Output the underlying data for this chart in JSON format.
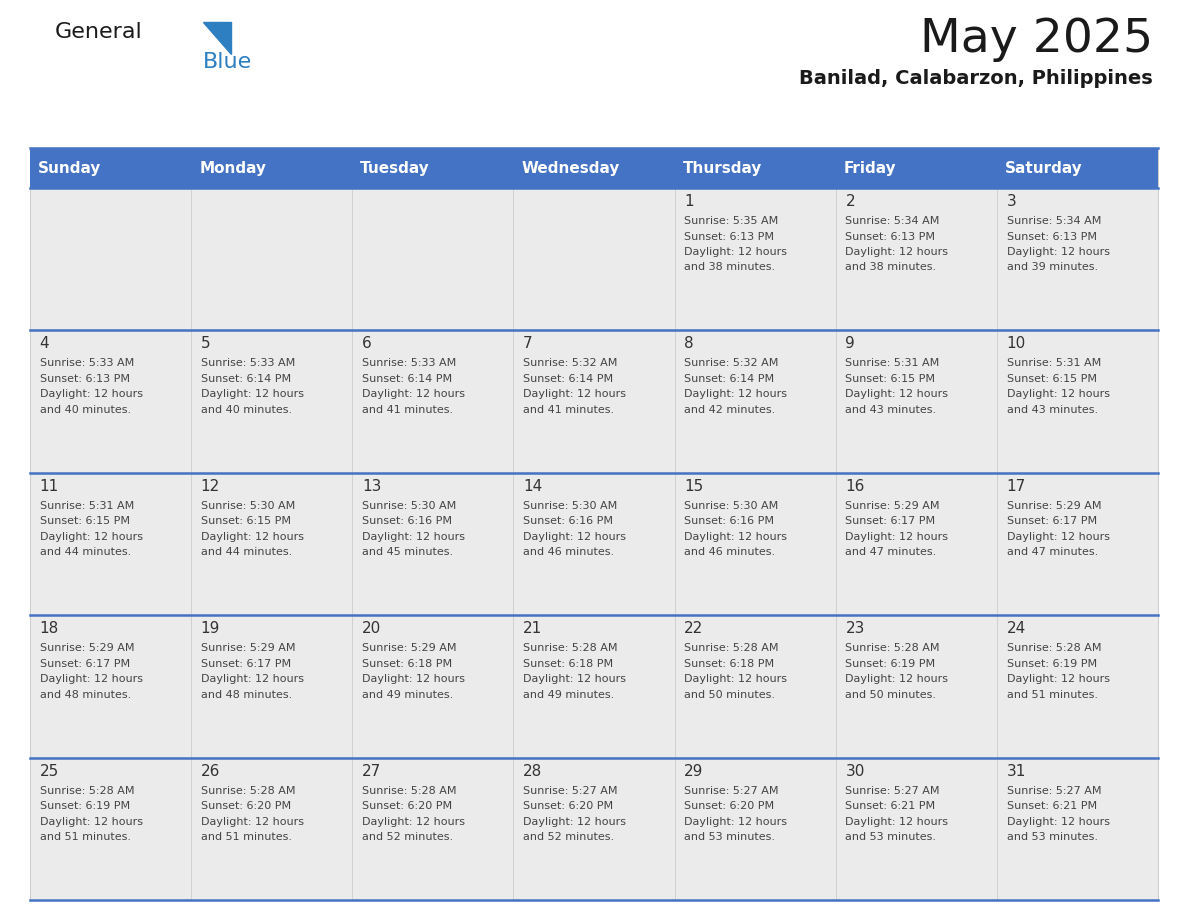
{
  "title": "May 2025",
  "subtitle": "Banilad, Calabarzon, Philippines",
  "days_of_week": [
    "Sunday",
    "Monday",
    "Tuesday",
    "Wednesday",
    "Thursday",
    "Friday",
    "Saturday"
  ],
  "header_bg_color": "#4472C4",
  "header_text_color": "#FFFFFF",
  "cell_bg_color": "#EBEBEB",
  "cell_text_color": "#444444",
  "day_number_color": "#333333",
  "row_line_color": "#4472C4",
  "col_line_color": "#BBBBBB",
  "title_color": "#1a1a1a",
  "subtitle_color": "#1a1a1a",
  "logo_general_color": "#1a1a1a",
  "logo_blue_color": "#2E7EC2",
  "logo_triangle_color": "#2E7EC2",
  "num_cols": 7,
  "num_rows": 5,
  "calendar_data": [
    [
      {
        "day": "",
        "sunrise": "",
        "sunset": "",
        "daylight_h": "",
        "daylight_m": ""
      },
      {
        "day": "",
        "sunrise": "",
        "sunset": "",
        "daylight_h": "",
        "daylight_m": ""
      },
      {
        "day": "",
        "sunrise": "",
        "sunset": "",
        "daylight_h": "",
        "daylight_m": ""
      },
      {
        "day": "",
        "sunrise": "",
        "sunset": "",
        "daylight_h": "",
        "daylight_m": ""
      },
      {
        "day": "1",
        "sunrise": "5:35 AM",
        "sunset": "6:13 PM",
        "daylight_h": "12",
        "daylight_m": "38"
      },
      {
        "day": "2",
        "sunrise": "5:34 AM",
        "sunset": "6:13 PM",
        "daylight_h": "12",
        "daylight_m": "38"
      },
      {
        "day": "3",
        "sunrise": "5:34 AM",
        "sunset": "6:13 PM",
        "daylight_h": "12",
        "daylight_m": "39"
      }
    ],
    [
      {
        "day": "4",
        "sunrise": "5:33 AM",
        "sunset": "6:13 PM",
        "daylight_h": "12",
        "daylight_m": "40"
      },
      {
        "day": "5",
        "sunrise": "5:33 AM",
        "sunset": "6:14 PM",
        "daylight_h": "12",
        "daylight_m": "40"
      },
      {
        "day": "6",
        "sunrise": "5:33 AM",
        "sunset": "6:14 PM",
        "daylight_h": "12",
        "daylight_m": "41"
      },
      {
        "day": "7",
        "sunrise": "5:32 AM",
        "sunset": "6:14 PM",
        "daylight_h": "12",
        "daylight_m": "41"
      },
      {
        "day": "8",
        "sunrise": "5:32 AM",
        "sunset": "6:14 PM",
        "daylight_h": "12",
        "daylight_m": "42"
      },
      {
        "day": "9",
        "sunrise": "5:31 AM",
        "sunset": "6:15 PM",
        "daylight_h": "12",
        "daylight_m": "43"
      },
      {
        "day": "10",
        "sunrise": "5:31 AM",
        "sunset": "6:15 PM",
        "daylight_h": "12",
        "daylight_m": "43"
      }
    ],
    [
      {
        "day": "11",
        "sunrise": "5:31 AM",
        "sunset": "6:15 PM",
        "daylight_h": "12",
        "daylight_m": "44"
      },
      {
        "day": "12",
        "sunrise": "5:30 AM",
        "sunset": "6:15 PM",
        "daylight_h": "12",
        "daylight_m": "44"
      },
      {
        "day": "13",
        "sunrise": "5:30 AM",
        "sunset": "6:16 PM",
        "daylight_h": "12",
        "daylight_m": "45"
      },
      {
        "day": "14",
        "sunrise": "5:30 AM",
        "sunset": "6:16 PM",
        "daylight_h": "12",
        "daylight_m": "46"
      },
      {
        "day": "15",
        "sunrise": "5:30 AM",
        "sunset": "6:16 PM",
        "daylight_h": "12",
        "daylight_m": "46"
      },
      {
        "day": "16",
        "sunrise": "5:29 AM",
        "sunset": "6:17 PM",
        "daylight_h": "12",
        "daylight_m": "47"
      },
      {
        "day": "17",
        "sunrise": "5:29 AM",
        "sunset": "6:17 PM",
        "daylight_h": "12",
        "daylight_m": "47"
      }
    ],
    [
      {
        "day": "18",
        "sunrise": "5:29 AM",
        "sunset": "6:17 PM",
        "daylight_h": "12",
        "daylight_m": "48"
      },
      {
        "day": "19",
        "sunrise": "5:29 AM",
        "sunset": "6:17 PM",
        "daylight_h": "12",
        "daylight_m": "48"
      },
      {
        "day": "20",
        "sunrise": "5:29 AM",
        "sunset": "6:18 PM",
        "daylight_h": "12",
        "daylight_m": "49"
      },
      {
        "day": "21",
        "sunrise": "5:28 AM",
        "sunset": "6:18 PM",
        "daylight_h": "12",
        "daylight_m": "49"
      },
      {
        "day": "22",
        "sunrise": "5:28 AM",
        "sunset": "6:18 PM",
        "daylight_h": "12",
        "daylight_m": "50"
      },
      {
        "day": "23",
        "sunrise": "5:28 AM",
        "sunset": "6:19 PM",
        "daylight_h": "12",
        "daylight_m": "50"
      },
      {
        "day": "24",
        "sunrise": "5:28 AM",
        "sunset": "6:19 PM",
        "daylight_h": "12",
        "daylight_m": "51"
      }
    ],
    [
      {
        "day": "25",
        "sunrise": "5:28 AM",
        "sunset": "6:19 PM",
        "daylight_h": "12",
        "daylight_m": "51"
      },
      {
        "day": "26",
        "sunrise": "5:28 AM",
        "sunset": "6:20 PM",
        "daylight_h": "12",
        "daylight_m": "51"
      },
      {
        "day": "27",
        "sunrise": "5:28 AM",
        "sunset": "6:20 PM",
        "daylight_h": "12",
        "daylight_m": "52"
      },
      {
        "day": "28",
        "sunrise": "5:27 AM",
        "sunset": "6:20 PM",
        "daylight_h": "12",
        "daylight_m": "52"
      },
      {
        "day": "29",
        "sunrise": "5:27 AM",
        "sunset": "6:20 PM",
        "daylight_h": "12",
        "daylight_m": "53"
      },
      {
        "day": "30",
        "sunrise": "5:27 AM",
        "sunset": "6:21 PM",
        "daylight_h": "12",
        "daylight_m": "53"
      },
      {
        "day": "31",
        "sunrise": "5:27 AM",
        "sunset": "6:21 PM",
        "daylight_h": "12",
        "daylight_m": "53"
      }
    ]
  ]
}
